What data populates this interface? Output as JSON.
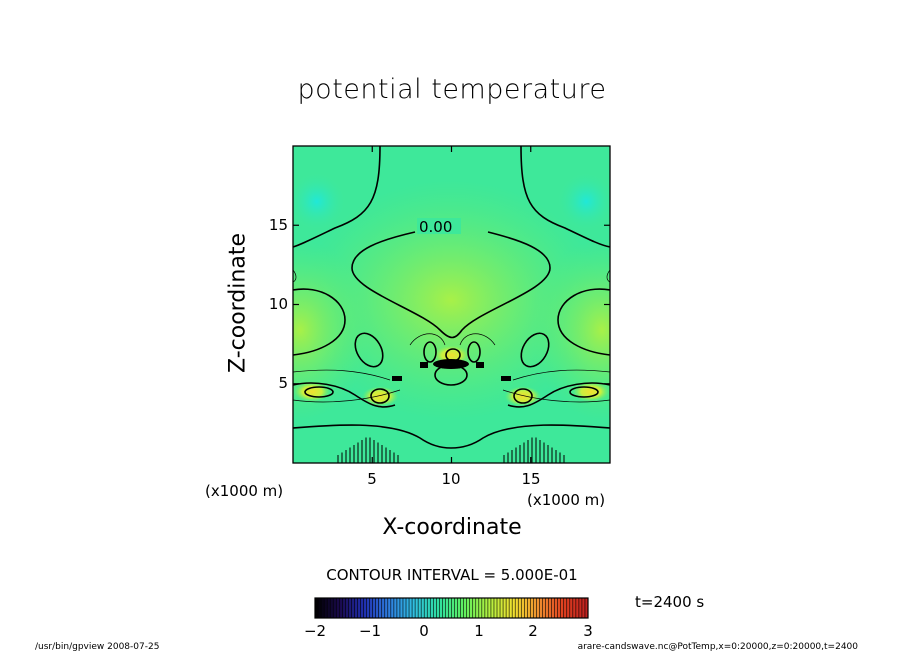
{
  "chart_data": {
    "type": "heatmap",
    "title": "potential temperature",
    "xlabel": "X-coordinate",
    "ylabel": "Z-coordinate",
    "x_unit": "(x1000 m)",
    "z_unit": "(x1000 m)",
    "xlim": [
      0,
      20
    ],
    "ylim": [
      0,
      20
    ],
    "x_ticks": [
      5,
      10,
      15
    ],
    "y_ticks": [
      5,
      10,
      15
    ],
    "contour_label": "0.00",
    "contour_interval_text": "CONTOUR INTERVAL = 5.000E-01",
    "time_text": "t=2400 s",
    "colorbar": {
      "min": -2,
      "max": 3,
      "ticks": [
        "−2",
        "−1",
        "0",
        "1",
        "2",
        "3"
      ],
      "colors": [
        "#000000",
        "#1a0a4d",
        "#2030b0",
        "#2f7fe0",
        "#30c0e0",
        "#30e0a0",
        "#60f060",
        "#b0f040",
        "#f0e030",
        "#f09030",
        "#e04020",
        "#c02020"
      ]
    },
    "features": [
      {
        "kind": "warm-spot",
        "x": 1.2,
        "z": 4.5
      },
      {
        "kind": "warm-spot",
        "x": 18.8,
        "z": 4.5
      },
      {
        "kind": "warm-spot",
        "x": 5.5,
        "z": 4.2
      },
      {
        "kind": "warm-spot",
        "x": 14.5,
        "z": 4.2
      },
      {
        "kind": "warm-spot",
        "x": 10.0,
        "z": 6.8
      },
      {
        "kind": "cool-spot",
        "x": 1.5,
        "z": 16.5
      },
      {
        "kind": "cool-spot",
        "x": 18.5,
        "z": 16.5
      }
    ],
    "background_color": "#3ee89a",
    "grid": false
  },
  "footer": {
    "left": "/usr/bin/gpview   2008-07-25",
    "right": "arare-candswave.nc@PotTemp,x=0:20000,z=0:20000,t=2400"
  }
}
